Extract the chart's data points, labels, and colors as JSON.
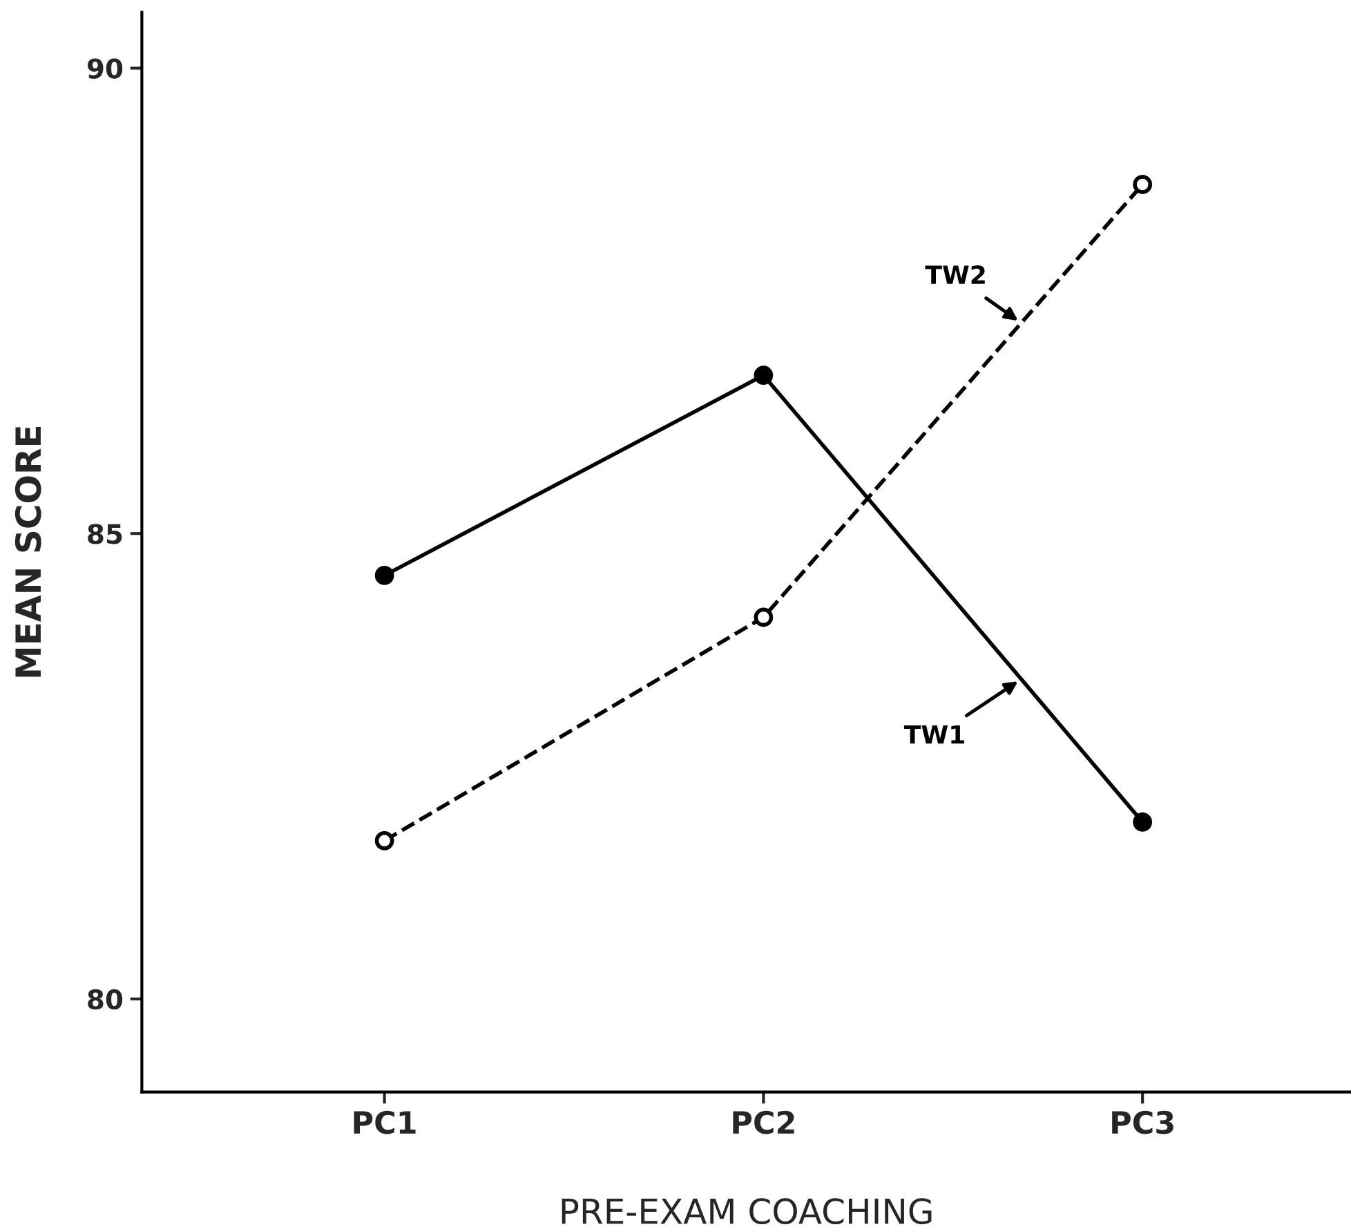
{
  "chart_data": {
    "type": "line",
    "xlabel": "PRE-EXAM COACHING",
    "ylabel": "MEAN SCORE",
    "categories": [
      "PC1",
      "PC2",
      "PC3"
    ],
    "series": [
      {
        "name": "TW1",
        "color": "#000000",
        "values": [
          84.55,
          86.7,
          81.9
        ],
        "line_style": "solid"
      },
      {
        "name": "TW2",
        "color": "#000000",
        "values": [
          81.7,
          84.1,
          88.75
        ],
        "line_style": "dashed"
      }
    ],
    "ylim": [
      79,
      90.6
    ],
    "yticks": [
      80,
      85,
      90
    ],
    "marker": "circle",
    "grid": false
  }
}
